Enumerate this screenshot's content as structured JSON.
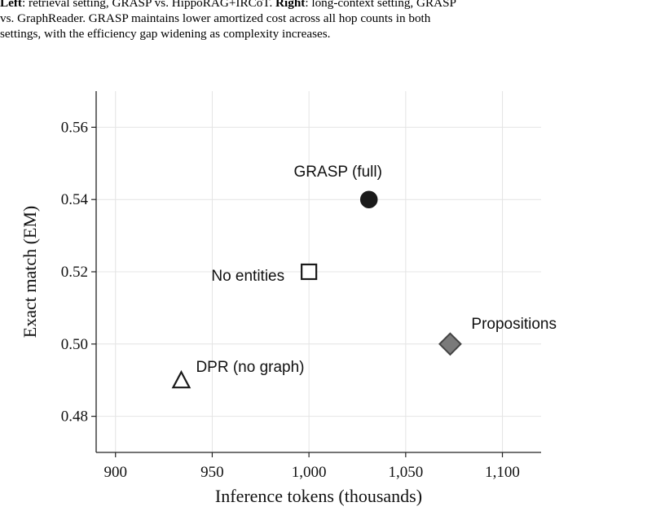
{
  "caption": {
    "line1_left_label": "Left",
    "line1_left_text": ": retrieval setting, GRASP vs. HippoRAG+IRCoT. ",
    "line1_right_label": "Right",
    "line1_right_text": ": long-context setting, GRASP",
    "line2": "vs. GraphReader.  GRASP maintains lower amortized cost across all hop counts in both",
    "line3": "settings, with the efficiency gap widening as complexity increases."
  },
  "chart_data": {
    "type": "scatter",
    "xlabel": "Inference tokens (thousands)",
    "ylabel": "Exact match (EM)",
    "xlim": [
      890,
      1120
    ],
    "ylim": [
      0.47,
      0.57
    ],
    "xticks": [
      900,
      950,
      1000,
      1050,
      1100
    ],
    "xtick_labels": [
      "900",
      "950",
      "1,000",
      "1,050",
      "1,100"
    ],
    "yticks": [
      0.48,
      0.5,
      0.52,
      0.54,
      0.56
    ],
    "ytick_labels": [
      "0.48",
      "0.50",
      "0.52",
      "0.54",
      "0.56"
    ],
    "grid": true,
    "points": [
      {
        "label": "GRASP (full)",
        "x": 1031,
        "y": 0.54,
        "marker": "circle",
        "fill": "#1a1a1a",
        "stroke": "#1a1a1a",
        "label_pos": "above-left"
      },
      {
        "label": "No entities",
        "x": 1000,
        "y": 0.52,
        "marker": "square",
        "fill": "#ffffff",
        "stroke": "#1a1a1a",
        "label_pos": "left"
      },
      {
        "label": "Propositions",
        "x": 1073,
        "y": 0.5,
        "marker": "diamond",
        "fill": "#7a7a7a",
        "stroke": "#444444",
        "label_pos": "above-right"
      },
      {
        "label": "DPR (no graph)",
        "x": 934,
        "y": 0.49,
        "marker": "triangle",
        "fill": "#ffffff",
        "stroke": "#1a1a1a",
        "label_pos": "above-right"
      }
    ]
  }
}
